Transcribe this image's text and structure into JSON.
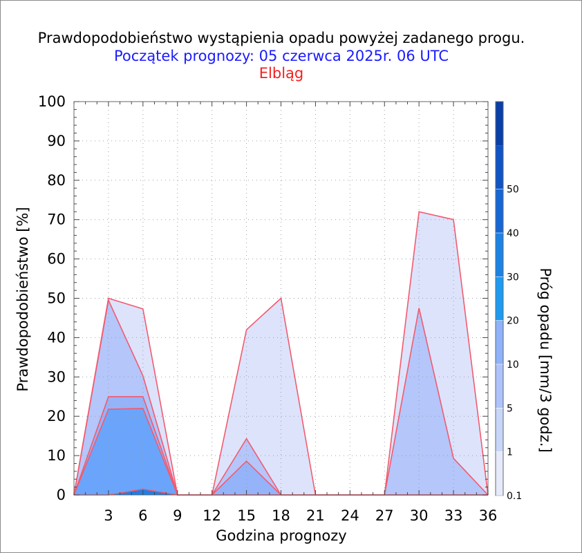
{
  "chart_data": {
    "type": "area",
    "title": "Prawdopodobieństwo wystąpienia opadu powyżej zadanego progu.",
    "subtitle": "Początek prognozy: 05 czerwca 2025r. 06 UTC",
    "location": "Elbląg",
    "xlabel": "Godzina prognozy",
    "ylabel": "Prawdopodobieństwo [%]",
    "colorbar_label": "Próg opadu [mm/3 godz.]",
    "xlim": [
      0,
      36
    ],
    "ylim": [
      0,
      100
    ],
    "x_ticks": [
      3,
      6,
      9,
      12,
      15,
      18,
      21,
      24,
      27,
      30,
      33,
      36
    ],
    "y_ticks": [
      0,
      10,
      20,
      30,
      40,
      50,
      60,
      70,
      80,
      90,
      100
    ],
    "grid": true,
    "x": [
      0,
      3,
      6,
      9,
      12,
      15,
      18,
      21,
      24,
      27,
      30,
      33,
      36
    ],
    "series": [
      {
        "name": "0.1",
        "color": "#dde3fb",
        "values": [
          0,
          50,
          47.3,
          0,
          0,
          42,
          50,
          0,
          0,
          0,
          72,
          70,
          0
        ]
      },
      {
        "name": "1",
        "color": "#b4c6fa",
        "values": [
          0,
          49.5,
          30.3,
          0,
          0,
          14.3,
          0,
          0,
          0,
          0,
          47.5,
          9.3,
          0
        ]
      },
      {
        "name": "5",
        "color": "#94b3f8",
        "values": [
          0,
          25,
          25,
          0,
          0,
          8.6,
          0,
          0,
          0,
          0,
          0,
          0,
          0
        ]
      },
      {
        "name": "10",
        "color": "#6aa5fb",
        "values": [
          0,
          21.8,
          22,
          0,
          0,
          0,
          0,
          0,
          0,
          0,
          0,
          0,
          0
        ]
      },
      {
        "name": "20",
        "color": "#1e7fe6",
        "values": [
          0,
          0,
          1.5,
          0,
          0,
          0,
          0,
          0,
          0,
          0,
          0,
          0,
          0
        ]
      }
    ],
    "colorbar": {
      "labels": [
        "0.1",
        "1",
        "5",
        "10",
        "20",
        "30",
        "40",
        "50"
      ],
      "colors": [
        "#e6eafb",
        "#c8d6fa",
        "#adc3fb",
        "#8fb3fa",
        "#1d9bf2",
        "#1b82e6",
        "#1567d6",
        "#0f54c6",
        "#0a3ea8"
      ]
    },
    "line_color": "#f25a6e"
  }
}
